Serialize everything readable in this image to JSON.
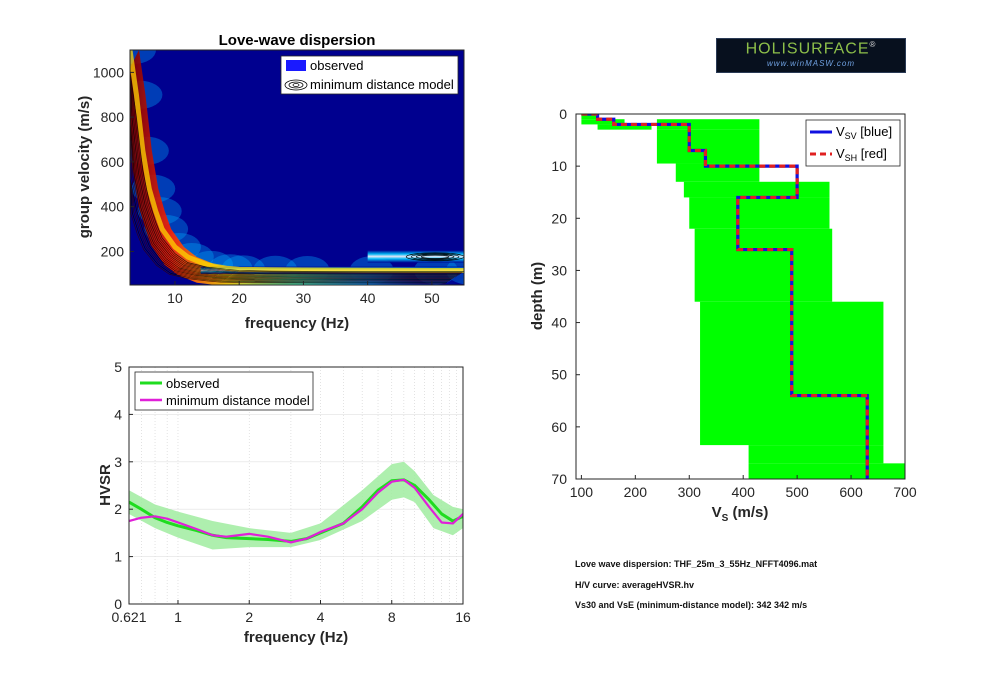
{
  "logo": {
    "title": "HOLISURFACE",
    "mark": "®",
    "subtitle": "www.winMASW.com"
  },
  "info": {
    "line1": "Love wave dispersion: THF_25m_3_55Hz_NFFT4096.mat",
    "line2": "H/V curve: averageHVSR.hv",
    "line3": "Vs30 and VsE (minimum-distance model): 342  342 m/s"
  },
  "chart_data": [
    {
      "type": "heatmap",
      "title": "Love-wave dispersion",
      "xlabel": "frequency (Hz)",
      "ylabel": "group velocity (m/s)",
      "xlim": [
        3,
        55
      ],
      "ylim": [
        50,
        1100
      ],
      "xticks": [
        10,
        20,
        30,
        40,
        50
      ],
      "yticks": [
        200,
        400,
        600,
        800,
        1000
      ],
      "legend": [
        "observed",
        "minimum distance model"
      ],
      "legend_position": "top-right",
      "colors": {
        "background": "#00008f",
        "observed": "#1a1aff",
        "model": "#000000"
      },
      "observed_ridge": {
        "x": [
          3,
          4,
          5,
          6,
          7,
          8,
          10,
          12,
          15,
          18,
          20,
          25,
          30,
          40,
          50,
          55
        ],
        "y": [
          1100,
          900,
          650,
          480,
          380,
          300,
          220,
          175,
          140,
          125,
          120,
          118,
          117,
          116,
          115,
          115
        ]
      },
      "model_ridge": {
        "x": [
          3,
          4,
          5,
          6,
          7,
          8,
          10,
          12,
          15,
          18,
          20,
          25,
          30,
          40,
          50,
          55
        ],
        "y": [
          1000,
          800,
          560,
          420,
          330,
          260,
          190,
          150,
          130,
          120,
          115,
          112,
          111,
          110,
          110,
          110
        ]
      },
      "model_high_branch": {
        "x": [
          46,
          48,
          50,
          52,
          55
        ],
        "y": [
          180,
          178,
          176,
          175,
          174
        ]
      }
    },
    {
      "type": "line",
      "xlabel": "frequency (Hz)",
      "ylabel": "HVSR",
      "xscale": "log",
      "xlim": [
        0.621,
        16
      ],
      "ylim": [
        0,
        5
      ],
      "xticks": [
        "0.621",
        "1",
        "2",
        "4",
        "8",
        "16"
      ],
      "yticks": [
        0,
        1,
        2,
        3,
        4,
        5
      ],
      "legend_position": "top-left",
      "series": [
        {
          "name": "observed",
          "color": "#1fdc1f",
          "x": [
            0.621,
            0.7,
            0.8,
            0.9,
            1.0,
            1.2,
            1.4,
            1.6,
            2.0,
            2.4,
            3.0,
            3.5,
            4.0,
            5.0,
            6.0,
            7.0,
            8.0,
            9.0,
            10.0,
            11.5,
            13.0,
            14.5,
            16.0
          ],
          "y": [
            2.15,
            2.0,
            1.82,
            1.72,
            1.65,
            1.55,
            1.45,
            1.4,
            1.38,
            1.36,
            1.32,
            1.38,
            1.5,
            1.7,
            2.05,
            2.4,
            2.6,
            2.62,
            2.5,
            2.2,
            1.9,
            1.75,
            1.85
          ]
        },
        {
          "name": "minimum distance model",
          "color": "#e020d8",
          "x": [
            0.621,
            0.7,
            0.8,
            0.9,
            1.0,
            1.2,
            1.4,
            1.6,
            2.0,
            2.4,
            3.0,
            3.5,
            4.0,
            5.0,
            6.0,
            7.0,
            8.0,
            9.0,
            10.0,
            11.5,
            13.0,
            14.5,
            16.0
          ],
          "y": [
            1.75,
            1.82,
            1.85,
            1.8,
            1.72,
            1.58,
            1.45,
            1.42,
            1.48,
            1.42,
            1.3,
            1.38,
            1.52,
            1.7,
            2.0,
            2.35,
            2.58,
            2.62,
            2.45,
            2.05,
            1.72,
            1.7,
            1.9
          ]
        }
      ],
      "band": {
        "color": "#a0eca0",
        "x": [
          0.621,
          0.8,
          1.0,
          1.4,
          2.0,
          3.0,
          4.0,
          6.0,
          8.0,
          9.0,
          10.0,
          12.0,
          14.5,
          16.0
        ],
        "upper": [
          2.4,
          2.1,
          1.95,
          1.75,
          1.6,
          1.5,
          1.7,
          2.4,
          2.95,
          3.0,
          2.8,
          2.3,
          2.05,
          2.0
        ],
        "lower": [
          1.9,
          1.6,
          1.4,
          1.15,
          1.2,
          1.2,
          1.35,
          1.75,
          2.2,
          2.25,
          2.15,
          1.6,
          1.45,
          1.6
        ]
      }
    },
    {
      "type": "line",
      "xlabel": "V_S (m/s)",
      "ylabel": "depth (m)",
      "xlim": [
        90,
        700
      ],
      "ylim": [
        0,
        70
      ],
      "y_reversed": true,
      "xticks": [
        100,
        200,
        300,
        400,
        500,
        600,
        700
      ],
      "yticks": [
        0,
        10,
        20,
        30,
        40,
        50,
        60,
        70
      ],
      "legend_position": "top-right",
      "series": [
        {
          "name": "V_SV [blue]",
          "color": "#1010e0",
          "x": [
            100,
            130,
            130,
            160,
            160,
            300,
            300,
            330,
            330,
            500,
            500,
            390,
            390,
            490,
            490,
            630,
            630
          ],
          "y": [
            0,
            0,
            1,
            1,
            2,
            2,
            7,
            7,
            10,
            10,
            16,
            16,
            26,
            26,
            54,
            54,
            70
          ]
        },
        {
          "name": "V_SH [red]",
          "color": "#e02020",
          "x": [
            100,
            130,
            130,
            160,
            160,
            300,
            300,
            330,
            330,
            500,
            500,
            390,
            390,
            490,
            490,
            630,
            630
          ],
          "y": [
            0,
            0,
            1,
            1,
            2,
            2,
            7,
            7,
            10,
            10,
            16,
            16,
            26,
            26,
            54,
            54,
            70
          ]
        }
      ],
      "search_space": {
        "color": "#00ff00",
        "layers": [
          {
            "depth": [
              0,
              1
            ],
            "vs": [
              100,
              130
            ]
          },
          {
            "depth": [
              1,
              2
            ],
            "vs": [
              100,
              180
            ]
          },
          {
            "depth": [
              2,
              3
            ],
            "vs": [
              130,
              230
            ]
          },
          {
            "depth": [
              1,
              3
            ],
            "vs": [
              240,
              430
            ]
          },
          {
            "depth": [
              3,
              9.5
            ],
            "vs": [
              240,
              430
            ]
          },
          {
            "depth": [
              9.5,
              13
            ],
            "vs": [
              275,
              430
            ]
          },
          {
            "depth": [
              13,
              16
            ],
            "vs": [
              290,
              560
            ]
          },
          {
            "depth": [
              16,
              22
            ],
            "vs": [
              300,
              560
            ]
          },
          {
            "depth": [
              22,
              36
            ],
            "vs": [
              310,
              565
            ]
          },
          {
            "depth": [
              36,
              63.5
            ],
            "vs": [
              320,
              660
            ]
          },
          {
            "depth": [
              63.5,
              67
            ],
            "vs": [
              410,
              660
            ]
          },
          {
            "depth": [
              67,
              70
            ],
            "vs": [
              410,
              700
            ]
          }
        ]
      }
    }
  ]
}
